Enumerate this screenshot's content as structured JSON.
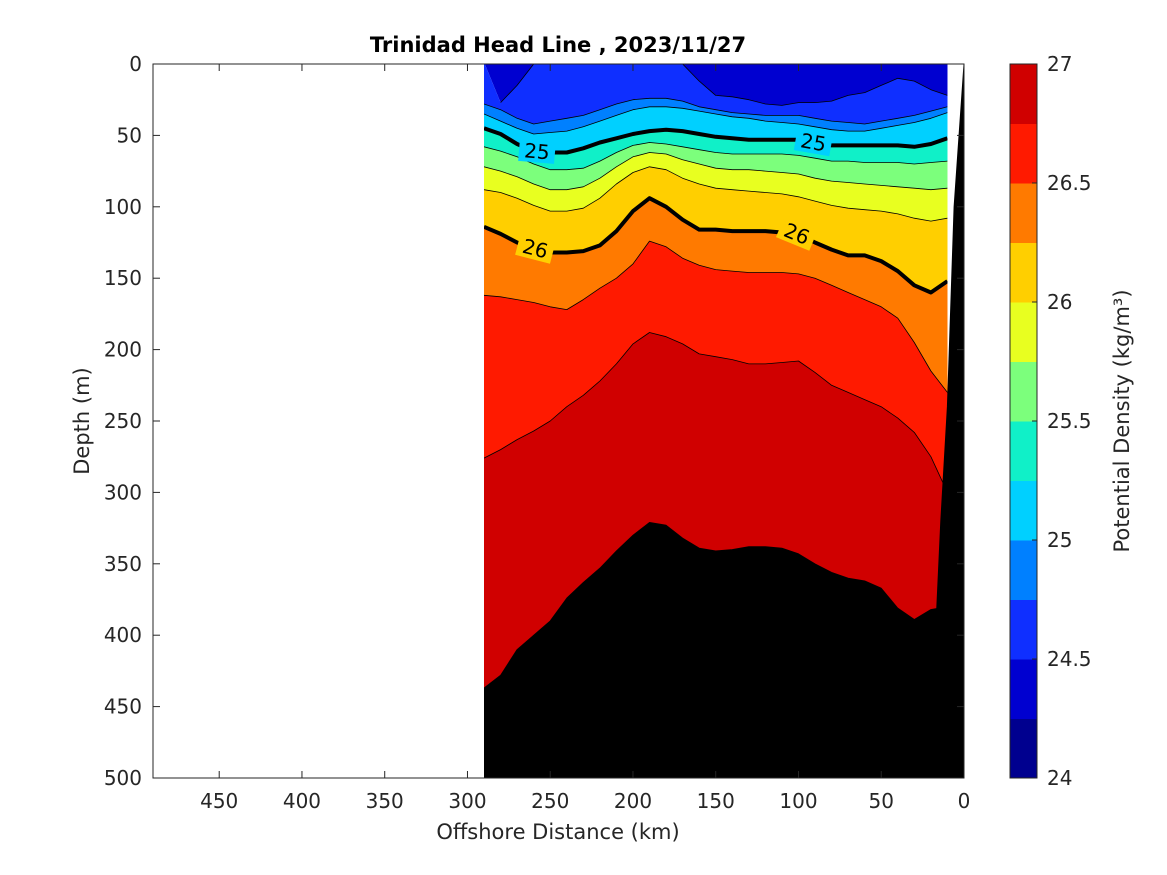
{
  "chart_data": {
    "type": "contour",
    "title": "Trinidad Head Line , 2023/11/27",
    "xlabel": "Offshore Distance (km)",
    "ylabel": "Depth (m)",
    "xlim": [
      490,
      0
    ],
    "ylim": [
      0,
      500
    ],
    "x_reversed": true,
    "y_reversed": true,
    "x_ticks": [
      "450",
      "400",
      "350",
      "300",
      "250",
      "200",
      "150",
      "100",
      "50",
      "0"
    ],
    "y_ticks": [
      "0",
      "50",
      "100",
      "150",
      "200",
      "250",
      "300",
      "350",
      "400",
      "450",
      "500"
    ],
    "colorbar": {
      "label": "Potential Density (kg/m³)",
      "range": [
        24,
        27
      ],
      "step": 0.25,
      "ticks": [
        "24",
        "24.5",
        "25",
        "25.5",
        "26",
        "26.5",
        "27"
      ],
      "colors": [
        "#00008f",
        "#0000d0",
        "#0f2fff",
        "#0080ff",
        "#00d0ff",
        "#10f0c8",
        "#7cff7c",
        "#e8ff20",
        "#ffcf00",
        "#ff7a00",
        "#ff1a00",
        "#d00000"
      ]
    },
    "data_extent_km": [
      290,
      10
    ],
    "labeled_contours": [
      {
        "level": "25",
        "label_x_km": [
          258,
          91
        ]
      },
      {
        "level": "26",
        "label_x_km": [
          259,
          101
        ]
      }
    ],
    "isopycnal_depths": {
      "x_km": [
        290,
        280,
        270,
        260,
        250,
        240,
        230,
        220,
        210,
        200,
        190,
        180,
        170,
        160,
        150,
        140,
        130,
        120,
        110,
        100,
        90,
        80,
        70,
        60,
        50,
        40,
        30,
        20,
        10
      ],
      "levels": [
        {
          "level": 24.25,
          "depth": [
            null,
            27,
            15,
            0,
            0,
            0,
            null,
            null,
            null,
            null,
            null,
            null,
            0,
            12,
            22,
            23,
            25,
            28,
            29,
            27,
            27,
            26,
            22,
            20,
            15,
            10,
            12,
            18,
            22
          ]
        },
        {
          "level": 24.5,
          "depth": [
            28,
            32,
            38,
            42,
            40,
            38,
            36,
            32,
            28,
            25,
            24,
            24,
            26,
            30,
            32,
            34,
            35,
            36,
            36,
            36,
            38,
            40,
            41,
            42,
            40,
            38,
            36,
            33,
            30
          ]
        },
        {
          "level": 24.75,
          "depth": [
            35,
            40,
            45,
            49,
            48,
            47,
            44,
            40,
            36,
            32,
            30,
            30,
            31,
            33,
            35,
            37,
            38,
            40,
            41,
            42,
            44,
            46,
            47,
            47,
            45,
            43,
            41,
            38,
            34
          ]
        },
        {
          "level": 25.0,
          "depth": [
            45,
            49,
            56,
            61,
            62,
            62,
            59,
            55,
            52,
            49,
            47,
            46,
            47,
            49,
            51,
            52,
            53,
            53,
            53,
            53,
            55,
            57,
            57,
            57,
            57,
            57,
            58,
            56,
            52
          ]
        },
        {
          "level": 25.25,
          "depth": [
            58,
            61,
            65,
            70,
            74,
            74,
            73,
            68,
            62,
            57,
            55,
            56,
            58,
            60,
            62,
            63,
            63,
            63,
            63,
            64,
            66,
            68,
            68,
            69,
            69,
            69,
            70,
            69,
            68
          ]
        },
        {
          "level": 25.5,
          "depth": [
            72,
            75,
            79,
            84,
            88,
            88,
            86,
            80,
            72,
            65,
            62,
            63,
            67,
            70,
            73,
            74,
            74,
            75,
            76,
            77,
            80,
            82,
            83,
            84,
            85,
            86,
            87,
            88,
            87
          ]
        },
        {
          "level": 25.75,
          "depth": [
            88,
            90,
            94,
            99,
            103,
            103,
            101,
            94,
            84,
            76,
            72,
            74,
            80,
            84,
            87,
            88,
            89,
            90,
            91,
            93,
            96,
            99,
            101,
            102,
            103,
            105,
            108,
            110,
            108
          ]
        },
        {
          "level": 26.0,
          "depth": [
            114,
            119,
            125,
            129,
            132,
            132,
            131,
            127,
            117,
            103,
            94,
            100,
            109,
            116,
            116,
            117,
            117,
            117,
            118,
            119,
            125,
            130,
            134,
            134,
            138,
            145,
            155,
            160,
            152
          ]
        },
        {
          "level": 26.25,
          "depth": [
            162,
            163,
            165,
            167,
            170,
            172,
            165,
            157,
            150,
            140,
            124,
            128,
            136,
            141,
            144,
            145,
            146,
            146,
            146,
            147,
            150,
            155,
            160,
            165,
            170,
            178,
            195,
            215,
            230
          ]
        },
        {
          "level": 26.5,
          "depth": [
            276,
            270,
            263,
            257,
            250,
            240,
            232,
            222,
            210,
            196,
            188,
            191,
            196,
            203,
            205,
            207,
            210,
            210,
            209,
            208,
            216,
            225,
            230,
            235,
            240,
            248,
            258,
            275,
            300
          ]
        },
        {
          "level": 26.75,
          "depth": [
            437,
            428,
            410,
            400,
            390,
            374,
            363,
            353,
            341,
            330,
            321,
            323,
            332,
            339,
            341,
            340,
            338,
            338,
            339,
            343,
            350,
            356,
            360,
            362,
            367,
            381,
            389,
            382,
            380
          ]
        }
      ]
    },
    "bathymetry": {
      "x_km": [
        24,
        18,
        14,
        10,
        6,
        0
      ],
      "depth": [
        500,
        420,
        320,
        240,
        100,
        0
      ]
    }
  }
}
